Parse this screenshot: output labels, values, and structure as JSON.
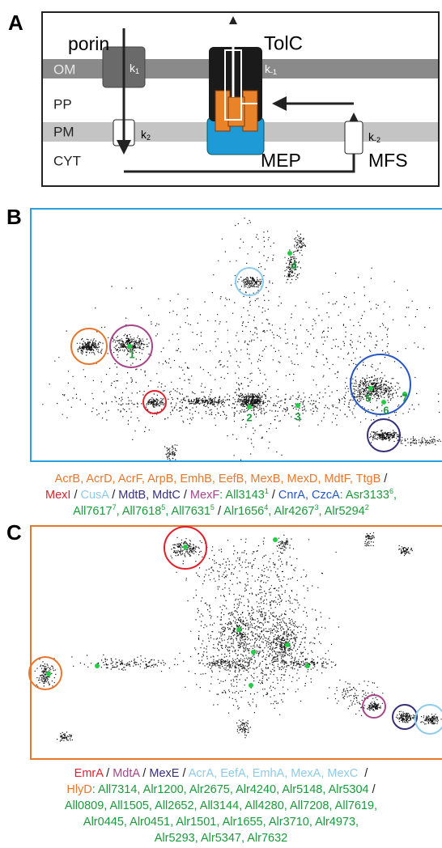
{
  "panel_a": {
    "label": "A",
    "porin": "porin",
    "tolc": "TolC",
    "om": "OM",
    "pp": "PP",
    "pm": "PM",
    "cyt": "CYT",
    "mep": "MEP",
    "mfs": "MFS",
    "k1": {
      "base": "k",
      "sub": "1"
    },
    "k_minus1": {
      "base": "k",
      "sub": "-1"
    },
    "k2": {
      "base": "k",
      "sub": "2"
    },
    "k_minus2": {
      "base": "k",
      "sub": "-2"
    }
  },
  "panel_b": {
    "label": "B",
    "cluster_labels": [
      "1",
      "2",
      "3",
      "4",
      "5",
      "6",
      "7"
    ],
    "caption": [
      [
        {
          "text": "AcrB, AcrD, AcrF, ArpB, EmhB, EefB, MexB, MexD, MdtF, TtgB",
          "color": "#e8772e"
        },
        {
          "text": " /",
          "color": "#222222"
        }
      ],
      [
        {
          "text": "MexI",
          "color": "#e0202a"
        },
        {
          "text": " / ",
          "color": "#222222"
        },
        {
          "text": "CusA",
          "color": "#8ccbea"
        },
        {
          "text": " / ",
          "color": "#222222"
        },
        {
          "text": "MdtB, MdtC",
          "color": "#35307a"
        },
        {
          "text": " / ",
          "color": "#222222"
        },
        {
          "text": "MexF",
          "color": "#a8468a"
        },
        {
          "text": ": All3143",
          "color": "#1a9a3a",
          "sup": "1"
        },
        {
          "text": " / ",
          "color": "#222222"
        },
        {
          "text": "CnrA, CzcA",
          "color": "#2456c8"
        },
        {
          "text": ": Asr3133",
          "color": "#1a9a3a",
          "sup": "6"
        },
        {
          "text": ",",
          "color": "#1a9a3a"
        }
      ],
      [
        {
          "text": "All7617",
          "color": "#1a9a3a",
          "sup": "7"
        },
        {
          "text": ", All7618",
          "color": "#1a9a3a",
          "sup": "5"
        },
        {
          "text": ", All7631",
          "color": "#1a9a3a",
          "sup": "5"
        },
        {
          "text": " / ",
          "color": "#222222"
        },
        {
          "text": "Alr1656",
          "color": "#1a9a3a",
          "sup": "4"
        },
        {
          "text": ", Alr4267",
          "color": "#1a9a3a",
          "sup": "3"
        },
        {
          "text": ", Alr5294",
          "color": "#1a9a3a",
          "sup": "2"
        }
      ]
    ]
  },
  "panel_c": {
    "label": "C",
    "caption": [
      [
        {
          "text": "EmrA",
          "color": "#e0202a"
        },
        {
          "text": " / ",
          "color": "#222222"
        },
        {
          "text": "MdtA",
          "color": "#a8468a"
        },
        {
          "text": " / ",
          "color": "#222222"
        },
        {
          "text": "MexE",
          "color": "#35307a"
        },
        {
          "text": " / ",
          "color": "#222222"
        },
        {
          "text": "AcrA, EefA, EmhA, MexA, MexC",
          "color": "#8ccbea"
        },
        {
          "text": "  /",
          "color": "#222222"
        }
      ],
      [
        {
          "text": "HlyD",
          "color": "#e8772e"
        },
        {
          "text": ": All7314, Alr1200, Alr2675, Alr4240, Alr5148, Alr5304",
          "color": "#1a9a3a"
        },
        {
          "text": " /",
          "color": "#222222"
        }
      ],
      [
        {
          "text": "All0809, All1505, All2652, All3144, All4280, All7208, All7619,",
          "color": "#1a9a3a"
        }
      ],
      [
        {
          "text": "Alr0445, Alr0451, Alr1501, Alr1655, Alr3710, Alr4973,",
          "color": "#1a9a3a"
        }
      ],
      [
        {
          "text": "Alr5293, Alr5347, Alr7632",
          "color": "#1a9a3a"
        }
      ]
    ]
  }
}
